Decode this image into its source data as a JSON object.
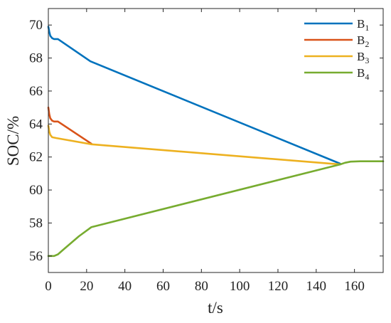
{
  "chart_data": {
    "type": "line",
    "title": "",
    "xlabel": "t/s",
    "ylabel": "SOC/%",
    "xlim": [
      0,
      175
    ],
    "ylim": [
      55,
      71
    ],
    "xticks": [
      0,
      20,
      40,
      60,
      80,
      100,
      120,
      140,
      160
    ],
    "yticks": [
      56,
      58,
      60,
      62,
      64,
      66,
      68,
      70
    ],
    "grid": false,
    "legend_position": "top-right",
    "series": [
      {
        "name": "B",
        "subscript": "1",
        "color": "#0072BD",
        "points": [
          [
            0,
            69.9
          ],
          [
            0.5,
            69.6
          ],
          [
            1,
            69.35
          ],
          [
            2,
            69.2
          ],
          [
            3,
            69.15
          ],
          [
            5,
            69.15
          ],
          [
            22,
            67.8
          ],
          [
            152.5,
            61.6
          ]
        ]
      },
      {
        "name": "B",
        "subscript": "2",
        "color": "#D95319",
        "points": [
          [
            0,
            65.0
          ],
          [
            0.5,
            64.6
          ],
          [
            1,
            64.35
          ],
          [
            2,
            64.2
          ],
          [
            3,
            64.15
          ],
          [
            5,
            64.15
          ],
          [
            22.5,
            62.8
          ]
        ]
      },
      {
        "name": "B",
        "subscript": "3",
        "color": "#EDB120",
        "points": [
          [
            0,
            63.9
          ],
          [
            0.5,
            63.55
          ],
          [
            1,
            63.35
          ],
          [
            2,
            63.2
          ],
          [
            4,
            63.15
          ],
          [
            22.5,
            62.77
          ],
          [
            152.5,
            61.55
          ]
        ]
      },
      {
        "name": "B",
        "subscript": "4",
        "color": "#77AC30",
        "points": [
          [
            0,
            56.0
          ],
          [
            3,
            56.0
          ],
          [
            5,
            56.1
          ],
          [
            8,
            56.4
          ],
          [
            16,
            57.2
          ],
          [
            22.5,
            57.75
          ],
          [
            152.5,
            61.55
          ],
          [
            155,
            61.65
          ],
          [
            158,
            61.72
          ],
          [
            163,
            61.74
          ],
          [
            175,
            61.74
          ]
        ]
      }
    ]
  }
}
